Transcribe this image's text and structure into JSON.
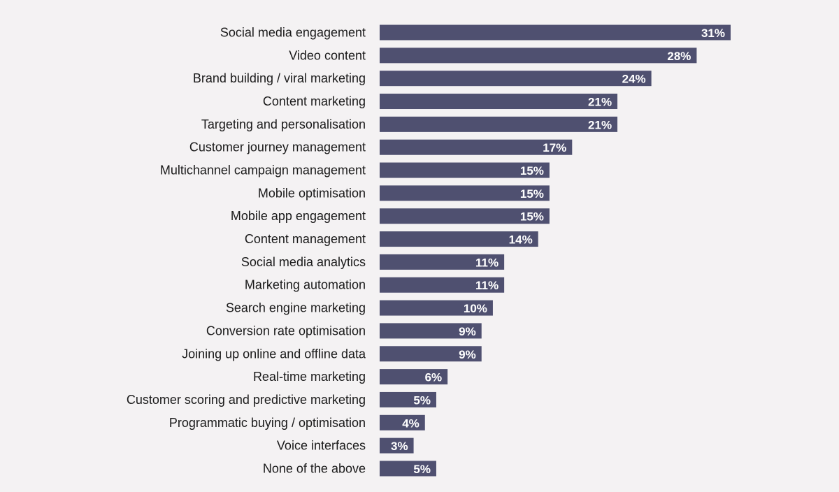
{
  "chart_data": {
    "type": "bar",
    "orientation": "horizontal",
    "categories": [
      "Social media engagement",
      "Video content",
      "Brand building / viral marketing",
      "Content marketing",
      "Targeting and personalisation",
      "Customer journey management",
      "Multichannel campaign management",
      "Mobile optimisation",
      "Mobile app engagement",
      "Content management",
      "Social media analytics",
      "Marketing automation",
      "Search engine marketing",
      "Conversion rate optimisation",
      "Joining up online and offline data",
      "Real-time marketing",
      "Customer scoring and predictive marketing",
      "Programmatic buying / optimisation",
      "Voice interfaces",
      "None of the above"
    ],
    "values": [
      31,
      28,
      24,
      21,
      21,
      17,
      15,
      15,
      15,
      14,
      11,
      11,
      10,
      9,
      9,
      6,
      5,
      4,
      3,
      5
    ],
    "value_labels": [
      "31%",
      "28%",
      "24%",
      "21%",
      "21%",
      "17%",
      "15%",
      "15%",
      "15%",
      "14%",
      "11%",
      "11%",
      "10%",
      "9%",
      "9%",
      "6%",
      "5%",
      "4%",
      "3%",
      "5%"
    ],
    "unit": "%",
    "title": "",
    "xlabel": "",
    "ylabel": "",
    "xlim": [
      0,
      31
    ],
    "grid": false,
    "legend": "none",
    "colors": {
      "bar": "#4f5070",
      "background": "#f4f2f3",
      "label_text": "#1a1a1a",
      "value_text": "#ffffff"
    }
  }
}
